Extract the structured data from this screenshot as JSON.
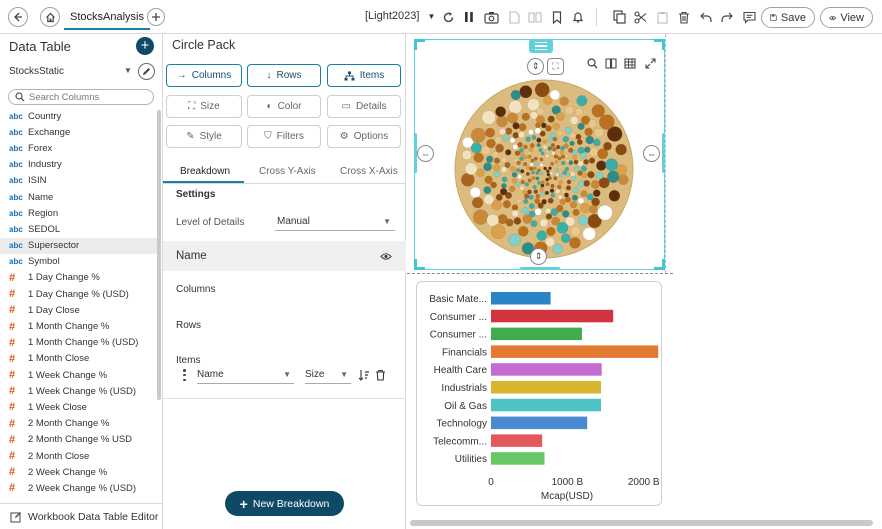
{
  "topbar": {
    "tab_label": "StocksAnalysis",
    "workspace": "[Light2023]",
    "save_label": "Save",
    "view_label": "View"
  },
  "left_panel": {
    "title": "Data Table",
    "table_name": "StocksStatic",
    "search_placeholder": "Search Columns",
    "columns": [
      {
        "type": "abc",
        "name": "Country"
      },
      {
        "type": "abc",
        "name": "Exchange"
      },
      {
        "type": "abc",
        "name": "Forex"
      },
      {
        "type": "abc",
        "name": "Industry"
      },
      {
        "type": "abc",
        "name": "ISIN"
      },
      {
        "type": "abc",
        "name": "Name"
      },
      {
        "type": "abc",
        "name": "Region"
      },
      {
        "type": "abc",
        "name": "SEDOL"
      },
      {
        "type": "abc",
        "name": "Supersector",
        "selected": true
      },
      {
        "type": "abc",
        "name": "Symbol"
      },
      {
        "type": "#",
        "name": "1 Day Change %"
      },
      {
        "type": "#",
        "name": "1 Day Change % (USD)"
      },
      {
        "type": "#",
        "name": "1 Day Close"
      },
      {
        "type": "#",
        "name": "1 Month Change %"
      },
      {
        "type": "#",
        "name": "1 Month Change % (USD)"
      },
      {
        "type": "#",
        "name": "1 Month Close"
      },
      {
        "type": "#",
        "name": "1 Week Change %"
      },
      {
        "type": "#",
        "name": "1 Week Change % (USD)"
      },
      {
        "type": "#",
        "name": "1 Week Close"
      },
      {
        "type": "#",
        "name": "2 Month Change %"
      },
      {
        "type": "#",
        "name": "2 Month Change % USD"
      },
      {
        "type": "#",
        "name": "2 Month Close"
      },
      {
        "type": "#",
        "name": "2 Week Change %"
      },
      {
        "type": "#",
        "name": "2 Week Change % (USD)"
      }
    ],
    "footer_label": "Workbook Data Table Editor"
  },
  "middle_panel": {
    "title": "Circle Pack",
    "dimension_buttons": [
      "Columns",
      "Rows",
      "Items"
    ],
    "option_buttons": [
      "Size",
      "Color",
      "Details",
      "Style",
      "Filters",
      "Options"
    ],
    "subtabs": [
      "Breakdown",
      "Cross Y-Axis",
      "Cross X-Axis"
    ],
    "settings_label": "Settings",
    "level_of_details_label": "Level of Details",
    "level_of_details_value": "Manual",
    "name_section_label": "Name",
    "columns_label": "Columns",
    "rows_label": "Rows",
    "items_label": "Items",
    "item_name_value": "Name",
    "item_size_value": "Size",
    "new_breakdown_label": "New Breakdown"
  },
  "colors": {
    "accent_dark": "#0e4a66",
    "accent_teal": "#5fd0dc",
    "circle_bg": "#dcbb7f",
    "bar_palette": [
      "#2b85c5",
      "#d1343f",
      "#3fae4a",
      "#e47a31",
      "#c46bd0",
      "#d6b42d",
      "#4cc3c4",
      "#4b89d0",
      "#e2585c",
      "#68c765"
    ]
  },
  "chart_data": {
    "type": "bar",
    "orientation": "horizontal",
    "categories": [
      "Basic Mate...",
      "Consumer ...",
      "Consumer ...",
      "Financials",
      "Health Care",
      "Industrials",
      "Oil & Gas",
      "Technology",
      "Telecomm...",
      "Utilities"
    ],
    "values": [
      780,
      1600,
      1190,
      2190,
      1450,
      1440,
      1440,
      1260,
      670,
      700
    ],
    "xlabel": "Mcap(USD)",
    "xticks": [
      0,
      1000,
      2000
    ],
    "xtick_labels": [
      "0",
      "1000 B",
      "2000 B"
    ],
    "xlim": [
      0,
      2200
    ],
    "grid": false,
    "legend": "none"
  }
}
